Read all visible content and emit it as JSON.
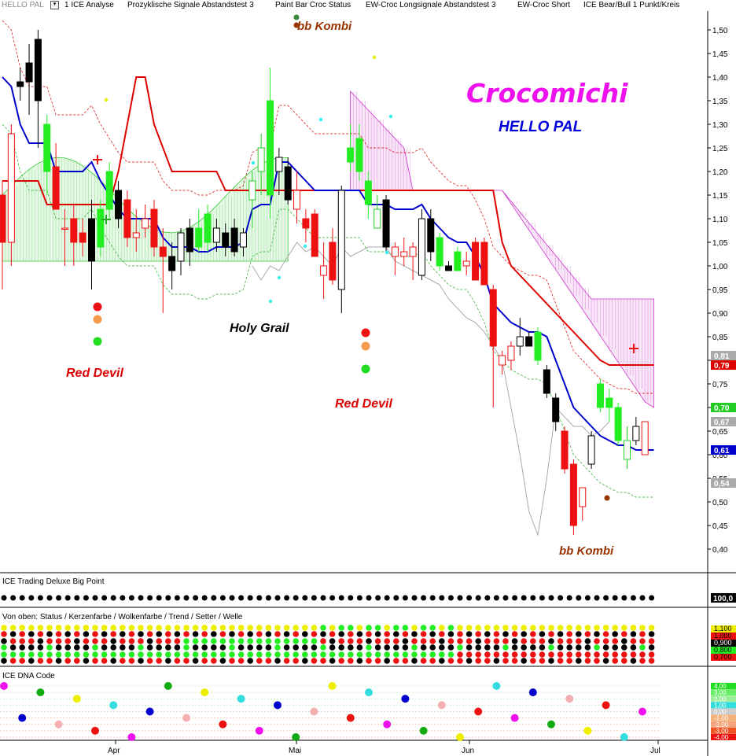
{
  "toolbar": {
    "title": "HELLO PAL",
    "items": [
      "1 ICE Analyse",
      "Prozyklische Signale Abstandstest 3",
      "Paint Bar Croc Status",
      "EW-Croc Longsignale Abstandstest 3",
      "EW-Croc Short",
      "ICE Bear/Bull 1 Punkt/Kreis"
    ]
  },
  "annotations": {
    "bb_kombi": "bb Kombi",
    "crocomichi": "Crocomichi",
    "hello_pal": "HELLO PAL",
    "holy_grail": "Holy Grail",
    "red_devil": "Red Devil"
  },
  "panels": {
    "big_point": "ICE Trading Deluxe Big Point",
    "status": "Von oben: Status / Kerzenfarbe / Wolkenfarbe / Trend / Setter / Welle",
    "dna": "ICE DNA Code"
  },
  "panel_values": {
    "big_point": "100,0",
    "status": [
      "1,100",
      "1,000",
      "0,900",
      "0,800",
      "0,700"
    ],
    "dna": [
      "4,00",
      "3,00",
      "2,00",
      "1,00",
      "0,00",
      "-1,00",
      "-2,00",
      "-3,00",
      "-4,00"
    ]
  },
  "colors": {
    "bull": "#22dd22",
    "bear": "#ee1111",
    "neutral": "#000000",
    "kijun": "#dd0000",
    "tenkan": "#0000cc",
    "cloud_bull": "#33cc33",
    "cloud_bear": "#cc33cc",
    "chikou": "#aaaaaa",
    "title_magenta": "#ee11ee",
    "hello_blue": "#0000dd",
    "annotation_red": "#dd0000",
    "annotation_brown": "#993300"
  },
  "chart_data": {
    "type": "candlestick",
    "x_ticks": [
      "Apr",
      "Mai",
      "Jun",
      "Jul"
    ],
    "y_ticks": [
      "1,50",
      "1,45",
      "1,40",
      "1,35",
      "1,30",
      "1,25",
      "1,20",
      "1,15",
      "1,10",
      "1,05",
      "1,00",
      "0,95",
      "0,90",
      "0,85",
      "0,80",
      "0,75",
      "0,70",
      "0,65",
      "0,60",
      "0,55",
      "0,50",
      "0,45",
      "0,40"
    ],
    "ylim": [
      0.38,
      1.52
    ],
    "price_labels": [
      {
        "label": "0,81",
        "value": 0.81,
        "color": "#aaaaaa"
      },
      {
        "label": "0,79",
        "value": 0.79,
        "color": "#dd0000"
      },
      {
        "label": "0,70",
        "value": 0.7,
        "color": "#22cc22"
      },
      {
        "label": "0,67",
        "value": 0.67,
        "color": "#aaaaaa"
      },
      {
        "label": "0,61",
        "value": 0.61,
        "color": "#0000cc"
      },
      {
        "label": "0,54",
        "value": 0.54,
        "color": "#aaaaaa"
      }
    ],
    "candles": [
      {
        "o": 1.15,
        "h": 1.18,
        "l": 0.95,
        "c": 1.05,
        "col": "red"
      },
      {
        "o": 1.05,
        "h": 1.3,
        "l": 1.0,
        "c": 1.28,
        "col": "hollow_red"
      },
      {
        "o": 1.38,
        "h": 1.42,
        "l": 1.35,
        "c": 1.39,
        "col": "black"
      },
      {
        "o": 1.39,
        "h": 1.47,
        "l": 1.32,
        "c": 1.43,
        "col": "black"
      },
      {
        "o": 1.48,
        "h": 1.5,
        "l": 1.25,
        "c": 1.35,
        "col": "black"
      },
      {
        "o": 1.3,
        "h": 1.32,
        "l": 1.15,
        "c": 1.2,
        "col": "green"
      },
      {
        "o": 1.21,
        "h": 1.26,
        "l": 1.12,
        "c": 1.12,
        "col": "red"
      },
      {
        "o": 1.08,
        "h": 1.12,
        "l": 1.0,
        "c": 1.08,
        "col": "hollow_red"
      },
      {
        "o": 1.1,
        "h": 1.13,
        "l": 1.0,
        "c": 1.05,
        "col": "red"
      },
      {
        "o": 1.05,
        "h": 1.1,
        "l": 1.02,
        "c": 1.07,
        "col": "red"
      },
      {
        "o": 1.1,
        "h": 1.14,
        "l": 0.95,
        "c": 1.01,
        "col": "black"
      },
      {
        "o": 1.12,
        "h": 1.14,
        "l": 1.02,
        "c": 1.04,
        "col": "green"
      },
      {
        "o": 1.2,
        "h": 1.22,
        "l": 1.1,
        "c": 1.12,
        "col": "green"
      },
      {
        "o": 1.16,
        "h": 1.18,
        "l": 1.08,
        "c": 1.1,
        "col": "black"
      },
      {
        "o": 1.14,
        "h": 1.16,
        "l": 1.04,
        "c": 1.06,
        "col": "red"
      },
      {
        "o": 1.06,
        "h": 1.12,
        "l": 1.03,
        "c": 1.07,
        "col": "hollow_red"
      },
      {
        "o": 1.1,
        "h": 1.13,
        "l": 1.06,
        "c": 1.08,
        "col": "hollow_red"
      },
      {
        "o": 1.12,
        "h": 1.14,
        "l": 1.02,
        "c": 1.04,
        "col": "red"
      },
      {
        "o": 1.04,
        "h": 1.08,
        "l": 0.9,
        "c": 1.02,
        "col": "red"
      },
      {
        "o": 1.02,
        "h": 1.05,
        "l": 0.95,
        "c": 0.99,
        "col": "black"
      },
      {
        "o": 1.01,
        "h": 1.08,
        "l": 0.98,
        "c": 1.07,
        "col": "hollow_black"
      },
      {
        "o": 1.03,
        "h": 1.1,
        "l": 1.0,
        "c": 1.08,
        "col": "black"
      },
      {
        "o": 1.08,
        "h": 1.12,
        "l": 1.03,
        "c": 1.04,
        "col": "green"
      },
      {
        "o": 1.11,
        "h": 1.13,
        "l": 1.03,
        "c": 1.05,
        "col": "green"
      },
      {
        "o": 1.08,
        "h": 1.1,
        "l": 1.03,
        "c": 1.05,
        "col": "hollow_black"
      },
      {
        "o": 1.07,
        "h": 1.09,
        "l": 1.02,
        "c": 1.04,
        "col": "black"
      },
      {
        "o": 1.08,
        "h": 1.1,
        "l": 1.02,
        "c": 1.03,
        "col": "black"
      },
      {
        "o": 1.04,
        "h": 1.08,
        "l": 1.02,
        "c": 1.07,
        "col": "hollow_black"
      },
      {
        "o": 1.14,
        "h": 1.2,
        "l": 1.08,
        "c": 1.18,
        "col": "green_hollow"
      },
      {
        "o": 1.2,
        "h": 1.28,
        "l": 1.15,
        "c": 1.25,
        "col": "green_hollow"
      },
      {
        "o": 1.15,
        "h": 1.42,
        "l": 1.1,
        "c": 1.35,
        "col": "green"
      },
      {
        "o": 1.23,
        "h": 1.25,
        "l": 1.15,
        "c": 1.2,
        "col": "hollow_black"
      },
      {
        "o": 1.21,
        "h": 1.23,
        "l": 1.13,
        "c": 1.14,
        "col": "black"
      },
      {
        "o": 1.16,
        "h": 1.2,
        "l": 1.09,
        "c": 1.12,
        "col": "hollow_red"
      },
      {
        "o": 1.1,
        "h": 1.12,
        "l": 1.05,
        "c": 1.08,
        "col": "red"
      },
      {
        "o": 1.11,
        "h": 1.12,
        "l": 1.02,
        "c": 1.02,
        "col": "red"
      },
      {
        "o": 1.0,
        "h": 1.05,
        "l": 0.93,
        "c": 0.98,
        "col": "hollow_red"
      },
      {
        "o": 1.05,
        "h": 1.08,
        "l": 0.96,
        "c": 0.97,
        "col": "red"
      },
      {
        "o": 1.16,
        "h": 1.17,
        "l": 0.9,
        "c": 0.95,
        "col": "hollow_black"
      },
      {
        "o": 1.25,
        "h": 1.3,
        "l": 1.2,
        "c": 1.22,
        "col": "green"
      },
      {
        "o": 1.27,
        "h": 1.3,
        "l": 1.18,
        "c": 1.2,
        "col": "green"
      },
      {
        "o": 1.18,
        "h": 1.2,
        "l": 1.1,
        "c": 1.13,
        "col": "green"
      },
      {
        "o": 1.12,
        "h": 1.15,
        "l": 1.08,
        "c": 1.08,
        "col": "green_hollow"
      },
      {
        "o": 1.14,
        "h": 1.15,
        "l": 1.03,
        "c": 1.04,
        "col": "black"
      },
      {
        "o": 1.02,
        "h": 1.05,
        "l": 0.98,
        "c": 1.04,
        "col": "hollow_red"
      },
      {
        "o": 1.03,
        "h": 1.06,
        "l": 1.0,
        "c": 1.02,
        "col": "hollow_red"
      },
      {
        "o": 1.02,
        "h": 1.05,
        "l": 0.97,
        "c": 1.04,
        "col": "hollow_red"
      },
      {
        "o": 1.1,
        "h": 1.12,
        "l": 0.97,
        "c": 0.98,
        "col": "hollow_black"
      },
      {
        "o": 1.1,
        "h": 1.12,
        "l": 1.01,
        "c": 1.03,
        "col": "black"
      },
      {
        "o": 1.06,
        "h": 1.07,
        "l": 0.99,
        "c": 1.0,
        "col": "green"
      },
      {
        "o": 1.0,
        "h": 1.01,
        "l": 0.99,
        "c": 0.99,
        "col": "black"
      },
      {
        "o": 1.03,
        "h": 1.04,
        "l": 0.99,
        "c": 0.99,
        "col": "green"
      },
      {
        "o": 1.0,
        "h": 1.03,
        "l": 0.98,
        "c": 1.01,
        "col": "hollow_red"
      },
      {
        "o": 1.05,
        "h": 1.06,
        "l": 0.97,
        "c": 0.97,
        "col": "red"
      },
      {
        "o": 1.05,
        "h": 1.06,
        "l": 0.96,
        "c": 0.96,
        "col": "red"
      },
      {
        "o": 0.95,
        "h": 0.96,
        "l": 0.7,
        "c": 0.83,
        "col": "red"
      },
      {
        "o": 0.79,
        "h": 0.82,
        "l": 0.77,
        "c": 0.81,
        "col": "hollow_red"
      },
      {
        "o": 0.8,
        "h": 0.84,
        "l": 0.78,
        "c": 0.83,
        "col": "hollow_red"
      },
      {
        "o": 0.83,
        "h": 0.89,
        "l": 0.81,
        "c": 0.85,
        "col": "hollow_black"
      },
      {
        "o": 0.85,
        "h": 0.86,
        "l": 0.83,
        "c": 0.83,
        "col": "black"
      },
      {
        "o": 0.86,
        "h": 0.87,
        "l": 0.79,
        "c": 0.8,
        "col": "green"
      },
      {
        "o": 0.78,
        "h": 0.79,
        "l": 0.72,
        "c": 0.73,
        "col": "black"
      },
      {
        "o": 0.72,
        "h": 0.73,
        "l": 0.65,
        "c": 0.67,
        "col": "black"
      },
      {
        "o": 0.65,
        "h": 0.66,
        "l": 0.56,
        "c": 0.57,
        "col": "red"
      },
      {
        "o": 0.58,
        "h": 0.59,
        "l": 0.43,
        "c": 0.45,
        "col": "red"
      },
      {
        "o": 0.49,
        "h": 0.53,
        "l": 0.46,
        "c": 0.53,
        "col": "hollow_red"
      },
      {
        "o": 0.58,
        "h": 0.65,
        "l": 0.57,
        "c": 0.64,
        "col": "hollow_black"
      },
      {
        "o": 0.75,
        "h": 0.76,
        "l": 0.69,
        "c": 0.7,
        "col": "green"
      },
      {
        "o": 0.72,
        "h": 0.74,
        "l": 0.67,
        "c": 0.7,
        "col": "green"
      },
      {
        "o": 0.7,
        "h": 0.71,
        "l": 0.62,
        "c": 0.63,
        "col": "green"
      },
      {
        "o": 0.59,
        "h": 0.66,
        "l": 0.57,
        "c": 0.63,
        "col": "green_hollow"
      },
      {
        "o": 0.63,
        "h": 0.68,
        "l": 0.62,
        "c": 0.66,
        "col": "hollow_black"
      },
      {
        "o": 0.6,
        "h": 0.67,
        "l": 0.6,
        "c": 0.67,
        "col": "hollow_red"
      }
    ],
    "kijun": [
      1.18,
      1.18,
      1.18,
      1.18,
      1.18,
      1.13,
      1.13,
      1.13,
      1.13,
      1.13,
      1.13,
      1.13,
      1.13,
      1.2,
      1.3,
      1.4,
      1.4,
      1.3,
      1.25,
      1.2,
      1.2,
      1.2,
      1.2,
      1.2,
      1.2,
      1.16,
      1.16,
      1.16,
      1.16,
      1.16,
      1.16,
      1.16,
      1.16,
      1.16,
      1.16,
      1.16,
      1.16,
      1.16,
      1.16,
      1.16,
      1.16,
      1.16,
      1.16,
      1.16,
      1.16,
      1.16,
      1.16,
      1.16,
      1.16,
      1.16,
      1.16,
      1.16,
      1.16,
      1.16,
      1.16,
      1.16,
      1.05,
      1.0,
      0.98,
      0.96,
      0.94,
      0.92,
      0.9,
      0.88,
      0.86,
      0.84,
      0.82,
      0.8,
      0.79,
      0.79,
      0.79,
      0.79,
      0.79,
      0.79
    ],
    "tenkan": [
      1.4,
      1.38,
      1.3,
      1.26,
      1.26,
      1.26,
      1.2,
      1.2,
      1.2,
      1.2,
      1.22,
      1.18,
      1.15,
      1.12,
      1.1,
      1.1,
      1.1,
      1.1,
      1.06,
      1.04,
      1.04,
      1.04,
      1.03,
      1.03,
      1.04,
      1.04,
      1.04,
      1.05,
      1.12,
      1.13,
      1.13,
      1.22,
      1.22,
      1.2,
      1.18,
      1.16,
      1.16,
      1.16,
      1.16,
      1.16,
      1.16,
      1.13,
      1.13,
      1.13,
      1.12,
      1.12,
      1.12,
      1.13,
      1.1,
      1.08,
      1.06,
      1.05,
      1.05,
      1.02,
      0.98,
      0.92,
      0.9,
      0.88,
      0.87,
      0.86,
      0.86,
      0.85,
      0.8,
      0.75,
      0.7,
      0.68,
      0.66,
      0.64,
      0.63,
      0.62,
      0.62,
      0.61,
      0.61,
      0.61
    ],
    "chikou": [
      1.0,
      0.97,
      1.0,
      0.99,
      1.02,
      1.05,
      1.03,
      1.04,
      1.02,
      1.0,
      1.04,
      1.02,
      1.03,
      1.04,
      1.04,
      1.04,
      1.01,
      1.0,
      0.99,
      0.98,
      0.97,
      0.96,
      0.93,
      0.91,
      0.89,
      0.88,
      0.86,
      0.83,
      0.8,
      0.7,
      0.6,
      0.48,
      0.43,
      0.55,
      0.7,
      0.68,
      0.66,
      0.66,
      0.64,
      0.65,
      0.67
    ]
  }
}
